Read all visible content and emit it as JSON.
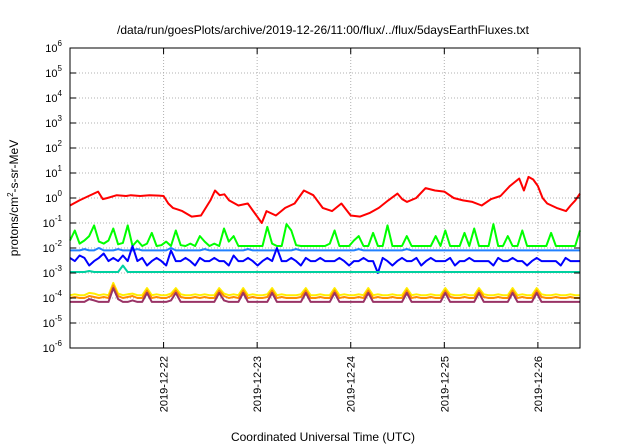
{
  "chart_data": {
    "type": "line",
    "title": "/data/run/goesPlots/archive/2019-12-26/11:00/flux/../flux/5daysEarthFluxes.txt",
    "xlabel": "Coordinated Universal Time (UTC)",
    "ylabel": {
      "pre": "protons/cm",
      "sup": "2",
      "post": "-s-sr-MeV"
    },
    "y_scale": "log",
    "ylim": [
      1e-06,
      1000000.0
    ],
    "y_ticks": [
      {
        "base": "10",
        "exp": "-6",
        "value": 1e-06
      },
      {
        "base": "10",
        "exp": "-5",
        "value": 1e-05
      },
      {
        "base": "10",
        "exp": "-4",
        "value": 0.0001
      },
      {
        "base": "10",
        "exp": "-3",
        "value": 0.001
      },
      {
        "base": "10",
        "exp": "-2",
        "value": 0.01
      },
      {
        "base": "10",
        "exp": "-1",
        "value": 0.1
      },
      {
        "base": "10",
        "exp": "0",
        "value": 1
      },
      {
        "base": "10",
        "exp": "1",
        "value": 10
      },
      {
        "base": "10",
        "exp": "2",
        "value": 100
      },
      {
        "base": "10",
        "exp": "3",
        "value": 1000
      },
      {
        "base": "10",
        "exp": "4",
        "value": 10000
      },
      {
        "base": "10",
        "exp": "5",
        "value": 100000
      },
      {
        "base": "10",
        "exp": "6",
        "value": 1000000
      }
    ],
    "x_ticks": [
      "2019-12-22",
      "2019-12-23",
      "2019-12-24",
      "2019-12-25",
      "2019-12-26"
    ],
    "x_tick_positions": [
      1,
      2,
      3,
      4,
      5
    ],
    "xlim": [
      0,
      5.45
    ],
    "grid": true,
    "series": [
      {
        "color": "#ff0000",
        "x": [
          0,
          0.1,
          0.2,
          0.3,
          0.35,
          0.4,
          0.5,
          0.6,
          0.65,
          0.75,
          0.85,
          0.95,
          1.0,
          1.05,
          1.1,
          1.15,
          1.2,
          1.3,
          1.4,
          1.5,
          1.55,
          1.6,
          1.65,
          1.7,
          1.8,
          1.9,
          2.0,
          2.05,
          2.1,
          2.2,
          2.3,
          2.4,
          2.5,
          2.6,
          2.7,
          2.8,
          2.9,
          3.0,
          3.1,
          3.2,
          3.3,
          3.4,
          3.5,
          3.55,
          3.6,
          3.7,
          3.8,
          3.9,
          4.0,
          4.1,
          4.2,
          4.3,
          4.4,
          4.5,
          4.6,
          4.7,
          4.8,
          4.85,
          4.9,
          4.95,
          5.0,
          5.05,
          5.1,
          5.2,
          5.3,
          5.35,
          5.4,
          5.45
        ],
        "y": [
          0.5,
          0.8,
          1.2,
          1.8,
          0.9,
          1.0,
          1.3,
          1.2,
          1.3,
          1.2,
          1.3,
          1.25,
          1.2,
          0.6,
          0.4,
          0.35,
          0.3,
          0.18,
          0.2,
          0.8,
          2.0,
          1.3,
          1.4,
          0.8,
          0.5,
          0.6,
          0.18,
          0.1,
          0.3,
          0.2,
          0.4,
          0.6,
          2.0,
          1.3,
          0.4,
          0.3,
          0.6,
          0.2,
          0.18,
          0.25,
          0.4,
          0.8,
          1.5,
          0.9,
          0.7,
          1.0,
          2.5,
          2.0,
          1.8,
          1.0,
          0.8,
          0.7,
          0.5,
          0.9,
          1.2,
          3.0,
          6.0,
          2.0,
          7.0,
          5.5,
          3.0,
          1.0,
          0.6,
          0.4,
          0.3,
          0.5,
          0.8,
          1.5
        ]
      },
      {
        "color": "#00ff00",
        "values": [
          0.02,
          0.05,
          0.015,
          0.02,
          0.03,
          0.08,
          0.018,
          0.015,
          0.02,
          0.06,
          0.014,
          0.016,
          0.08,
          0.012,
          0.02,
          0.012,
          0.015,
          0.04,
          0.012,
          0.013,
          0.018,
          0.012,
          0.05,
          0.013,
          0.012,
          0.015,
          0.012,
          0.03,
          0.018,
          0.012,
          0.015,
          0.012,
          0.06,
          0.018,
          0.03,
          0.012,
          0.012,
          0.012,
          0.012,
          0.012,
          0.012,
          0.07,
          0.015,
          0.012,
          0.012,
          0.09,
          0.05,
          0.013,
          0.012,
          0.012,
          0.012,
          0.012,
          0.012,
          0.012,
          0.015,
          0.05,
          0.012,
          0.012,
          0.012,
          0.02,
          0.03,
          0.012,
          0.012,
          0.04,
          0.012,
          0.012,
          0.08,
          0.012,
          0.012,
          0.012,
          0.03,
          0.012,
          0.012,
          0.012,
          0.012,
          0.012,
          0.03,
          0.012,
          0.05,
          0.012,
          0.012,
          0.012,
          0.04,
          0.012,
          0.06,
          0.012,
          0.012,
          0.012,
          0.09,
          0.012,
          0.012,
          0.03,
          0.012,
          0.012,
          0.05,
          0.012,
          0.012,
          0.012,
          0.012,
          0.012,
          0.04,
          0.012,
          0.012,
          0.012,
          0.012,
          0.012,
          0.05
        ]
      },
      {
        "color": "#2080ff",
        "values": [
          0.008,
          0.008,
          0.008,
          0.009,
          0.008,
          0.008,
          0.01,
          0.008,
          0.008,
          0.008,
          0.009,
          0.008,
          0.008,
          0.008,
          0.009,
          0.008,
          0.008,
          0.008,
          0.008,
          0.008,
          0.008,
          0.01,
          0.008,
          0.008,
          0.008,
          0.008,
          0.008,
          0.008,
          0.009,
          0.008,
          0.008,
          0.008,
          0.008,
          0.008,
          0.008,
          0.008,
          0.008,
          0.009,
          0.008,
          0.008,
          0.008,
          0.008,
          0.008,
          0.008,
          0.008,
          0.008,
          0.008,
          0.009,
          0.008,
          0.008,
          0.008,
          0.008,
          0.008,
          0.008,
          0.008,
          0.008,
          0.008,
          0.008,
          0.008,
          0.008,
          0.009,
          0.008,
          0.008,
          0.008,
          0.008,
          0.008,
          0.008,
          0.008,
          0.008,
          0.008,
          0.009,
          0.008,
          0.008,
          0.008,
          0.008,
          0.008,
          0.008,
          0.008,
          0.008,
          0.008,
          0.008,
          0.008,
          0.008,
          0.008,
          0.008,
          0.008,
          0.008,
          0.008,
          0.008,
          0.008,
          0.008,
          0.008,
          0.008,
          0.008,
          0.008,
          0.008,
          0.008,
          0.008,
          0.008,
          0.008,
          0.008,
          0.008,
          0.008,
          0.008,
          0.008,
          0.008,
          0.008
        ]
      },
      {
        "color": "#0000ff",
        "values": [
          0.004,
          0.003,
          0.005,
          0.004,
          0.002,
          0.003,
          0.004,
          0.006,
          0.003,
          0.004,
          0.003,
          0.005,
          0.003,
          0.012,
          0.003,
          0.004,
          0.002,
          0.003,
          0.004,
          0.003,
          0.002,
          0.008,
          0.003,
          0.003,
          0.004,
          0.003,
          0.002,
          0.004,
          0.003,
          0.003,
          0.004,
          0.003,
          0.003,
          0.002,
          0.005,
          0.003,
          0.003,
          0.004,
          0.003,
          0.002,
          0.003,
          0.004,
          0.003,
          0.01,
          0.003,
          0.003,
          0.004,
          0.003,
          0.002,
          0.004,
          0.003,
          0.003,
          0.004,
          0.003,
          0.003,
          0.003,
          0.004,
          0.003,
          0.002,
          0.003,
          0.003,
          0.004,
          0.003,
          0.003,
          0.001,
          0.004,
          0.003,
          0.002,
          0.003,
          0.004,
          0.003,
          0.003,
          0.004,
          0.002,
          0.003,
          0.004,
          0.003,
          0.003,
          0.003,
          0.004,
          0.002,
          0.003,
          0.003,
          0.004,
          0.003,
          0.003,
          0.003,
          0.003,
          0.002,
          0.004,
          0.003,
          0.003,
          0.004,
          0.003,
          0.003,
          0.002,
          0.003,
          0.004,
          0.003,
          0.003,
          0.003,
          0.003,
          0.002,
          0.004,
          0.003,
          0.003,
          0.003
        ]
      },
      {
        "color": "#00d0a0",
        "values": [
          0.0011,
          0.0011,
          0.0011,
          0.0011,
          0.0012,
          0.0011,
          0.0011,
          0.0011,
          0.0011,
          0.0011,
          0.0011,
          0.002,
          0.0011,
          0.0011,
          0.0011,
          0.0011,
          0.0011,
          0.0011,
          0.0011,
          0.0011,
          0.0011,
          0.0011,
          0.0011,
          0.0011,
          0.0011,
          0.0011,
          0.0011,
          0.0011,
          0.0011,
          0.0011,
          0.0011,
          0.0011,
          0.0011,
          0.0011,
          0.0011,
          0.0011,
          0.0011,
          0.0011,
          0.0011,
          0.0011,
          0.0011,
          0.0011,
          0.0011,
          0.0011,
          0.0011,
          0.0011,
          0.0011,
          0.0011,
          0.0011,
          0.0011,
          0.0011,
          0.0011,
          0.0011,
          0.0011,
          0.0011,
          0.0011,
          0.0011,
          0.0011,
          0.0011,
          0.0011,
          0.0011,
          0.0011,
          0.0011,
          0.0011,
          0.0011,
          0.0011,
          0.0011,
          0.0011,
          0.0011,
          0.0011,
          0.0011,
          0.0011,
          0.0011,
          0.0011,
          0.0011,
          0.0011,
          0.0011,
          0.0011,
          0.0011,
          0.0011,
          0.0011,
          0.0011,
          0.0011,
          0.0011,
          0.0011,
          0.0011,
          0.0011,
          0.0011,
          0.0011,
          0.0011,
          0.0011,
          0.0011,
          0.0011,
          0.0011,
          0.0011,
          0.0011,
          0.0011,
          0.0011,
          0.0011,
          0.0011,
          0.0011,
          0.0011,
          0.0011,
          0.0011,
          0.0011,
          0.0011,
          0.0011
        ]
      },
      {
        "color": "#ffee00",
        "values": [
          0.00013,
          0.00014,
          0.00013,
          0.00013,
          0.00016,
          0.00015,
          0.00013,
          0.00014,
          0.00013,
          0.0004,
          0.00015,
          0.00013,
          0.00014,
          0.00015,
          0.00013,
          0.00013,
          0.00025,
          0.00013,
          0.00014,
          0.00013,
          0.00013,
          0.00015,
          0.00025,
          0.00014,
          0.00013,
          0.00013,
          0.00014,
          0.00013,
          0.00014,
          0.00013,
          0.00013,
          0.00025,
          0.00015,
          0.00013,
          0.00014,
          0.00013,
          0.00025,
          0.00013,
          0.00014,
          0.00013,
          0.00013,
          0.00014,
          0.00025,
          0.00013,
          0.00014,
          0.00013,
          0.00013,
          0.00013,
          0.00014,
          0.00025,
          0.00013,
          0.00013,
          0.00014,
          0.00013,
          0.00013,
          0.00025,
          0.00013,
          0.00014,
          0.00013,
          0.00013,
          0.00014,
          0.00013,
          0.00025,
          0.00013,
          0.00014,
          0.00013,
          0.00013,
          0.00014,
          0.00013,
          0.00013,
          0.00025,
          0.00013,
          0.00014,
          0.00013,
          0.00013,
          0.00014,
          0.00013,
          0.00013,
          0.00025,
          0.00014,
          0.00013,
          0.00013,
          0.00014,
          0.00013,
          0.00013,
          0.00025,
          0.00014,
          0.00013,
          0.00013,
          0.00014,
          0.00013,
          0.00013,
          0.00025,
          0.00013,
          0.00014,
          0.00013,
          0.00013,
          0.00025,
          0.00014,
          0.00013,
          0.00013,
          0.00014,
          0.00013,
          0.00013,
          0.00014,
          0.00013,
          0.00013
        ]
      },
      {
        "color": "#ff8c00",
        "values": [
          0.0001,
          0.00011,
          0.0001,
          0.0001,
          0.00012,
          0.00011,
          0.0001,
          0.00011,
          0.0001,
          0.00032,
          0.00012,
          0.0001,
          0.00011,
          0.00012,
          0.0001,
          0.0001,
          0.0002,
          0.0001,
          0.00011,
          0.0001,
          0.0001,
          0.00012,
          0.0002,
          0.00011,
          0.0001,
          0.0001,
          0.00011,
          0.0001,
          0.00011,
          0.0001,
          0.0001,
          0.0002,
          0.00012,
          0.0001,
          0.00011,
          0.0001,
          0.0002,
          0.0001,
          0.00011,
          0.0001,
          0.0001,
          0.00011,
          0.0002,
          0.0001,
          0.00011,
          0.0001,
          0.0001,
          0.0001,
          0.00011,
          0.0002,
          0.0001,
          0.0001,
          0.00011,
          0.0001,
          0.0001,
          0.0002,
          0.0001,
          0.00011,
          0.0001,
          0.0001,
          0.00011,
          0.0001,
          0.0002,
          0.0001,
          0.00011,
          0.0001,
          0.0001,
          0.00011,
          0.0001,
          0.0001,
          0.0002,
          0.0001,
          0.00011,
          0.0001,
          0.0001,
          0.00011,
          0.0001,
          0.0001,
          0.0002,
          0.00011,
          0.0001,
          0.0001,
          0.00011,
          0.0001,
          0.0001,
          0.0002,
          0.00011,
          0.0001,
          0.0001,
          0.00011,
          0.0001,
          0.0001,
          0.0002,
          0.0001,
          0.00011,
          0.0001,
          0.0001,
          0.0002,
          0.00011,
          0.0001,
          0.0001,
          0.00011,
          0.0001,
          0.0001,
          0.00011,
          0.0001,
          0.0001
        ]
      },
      {
        "color": "#993366",
        "values": [
          7e-05,
          7e-05,
          7e-05,
          7e-05,
          9e-05,
          8e-05,
          7e-05,
          7e-05,
          7e-05,
          0.00025,
          9e-05,
          7e-05,
          7e-05,
          8e-05,
          7e-05,
          7e-05,
          0.00016,
          7e-05,
          7e-05,
          7e-05,
          7e-05,
          8e-05,
          0.00016,
          7e-05,
          7e-05,
          7e-05,
          7e-05,
          7e-05,
          7e-05,
          7e-05,
          7e-05,
          0.00016,
          8e-05,
          7e-05,
          7e-05,
          7e-05,
          0.00016,
          7e-05,
          7e-05,
          7e-05,
          7e-05,
          7e-05,
          0.00016,
          7e-05,
          7e-05,
          7e-05,
          7e-05,
          7e-05,
          7e-05,
          0.00016,
          7e-05,
          7e-05,
          7e-05,
          7e-05,
          7e-05,
          0.00016,
          7e-05,
          7e-05,
          7e-05,
          7e-05,
          7e-05,
          7e-05,
          0.00016,
          7e-05,
          7e-05,
          7e-05,
          7e-05,
          7e-05,
          7e-05,
          7e-05,
          0.00016,
          7e-05,
          7e-05,
          7e-05,
          7e-05,
          7e-05,
          7e-05,
          7e-05,
          0.00016,
          7e-05,
          7e-05,
          7e-05,
          7e-05,
          7e-05,
          7e-05,
          0.00016,
          7e-05,
          7e-05,
          7e-05,
          7e-05,
          7e-05,
          7e-05,
          0.00016,
          7e-05,
          7e-05,
          7e-05,
          7e-05,
          0.00016,
          7e-05,
          7e-05,
          7e-05,
          7e-05,
          7e-05,
          7e-05,
          7e-05,
          7e-05,
          7e-05
        ]
      }
    ]
  }
}
